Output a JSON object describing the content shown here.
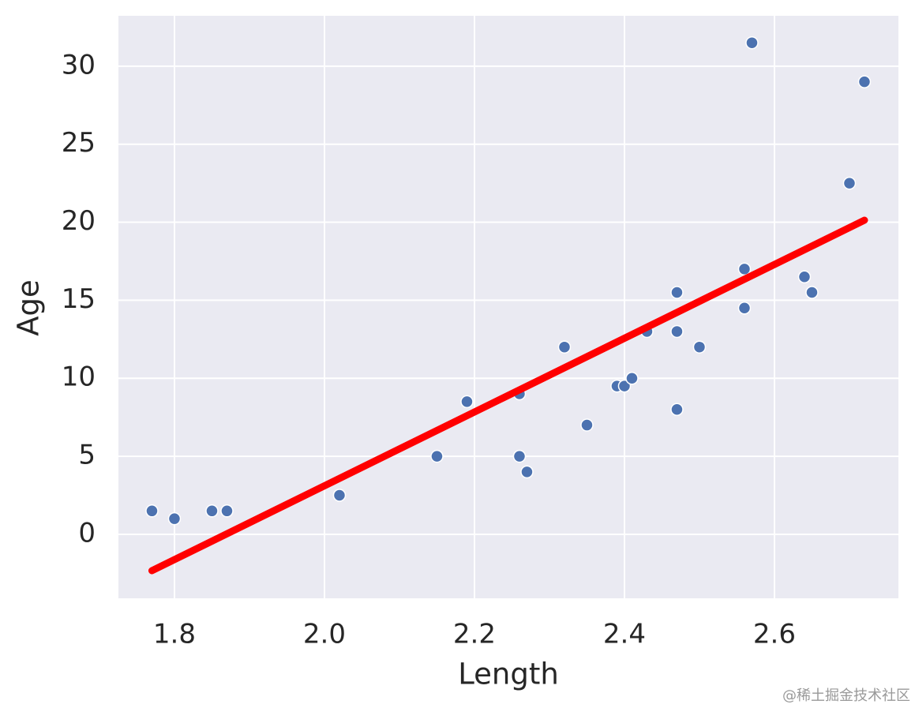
{
  "chart_data": {
    "type": "scatter",
    "xlabel": "Length",
    "ylabel": "Age",
    "x": [
      1.77,
      1.8,
      1.85,
      1.87,
      2.02,
      2.15,
      2.19,
      2.26,
      2.26,
      2.27,
      2.32,
      2.35,
      2.39,
      2.4,
      2.41,
      2.43,
      2.47,
      2.47,
      2.47,
      2.5,
      2.56,
      2.56,
      2.57,
      2.64,
      2.65,
      2.7,
      2.72
    ],
    "y": [
      1.5,
      1.0,
      1.5,
      1.5,
      2.5,
      5,
      8.5,
      9,
      5,
      4,
      12,
      7,
      9.5,
      9.5,
      10,
      13,
      15.5,
      13,
      8,
      12,
      17,
      14.5,
      31.5,
      16.5,
      15.5,
      22.5,
      29
    ],
    "color": "#4c72b0",
    "fit": {
      "x": [
        1.77,
        2.72
      ],
      "y": [
        -2.33,
        20.13
      ],
      "color": "#ff0000"
    },
    "xlim": [
      1.7253,
      2.7653
    ],
    "ylim": [
      -4.1,
      33.23
    ],
    "xticks": [
      1.8,
      {
        "value": 2,
        "label": "2.0"
      },
      2.2,
      2.4,
      2.6
    ],
    "yticks": [
      0,
      5,
      10,
      15,
      20,
      25,
      30
    ],
    "grid": true
  },
  "watermark": "@稀土掘金技术社区"
}
